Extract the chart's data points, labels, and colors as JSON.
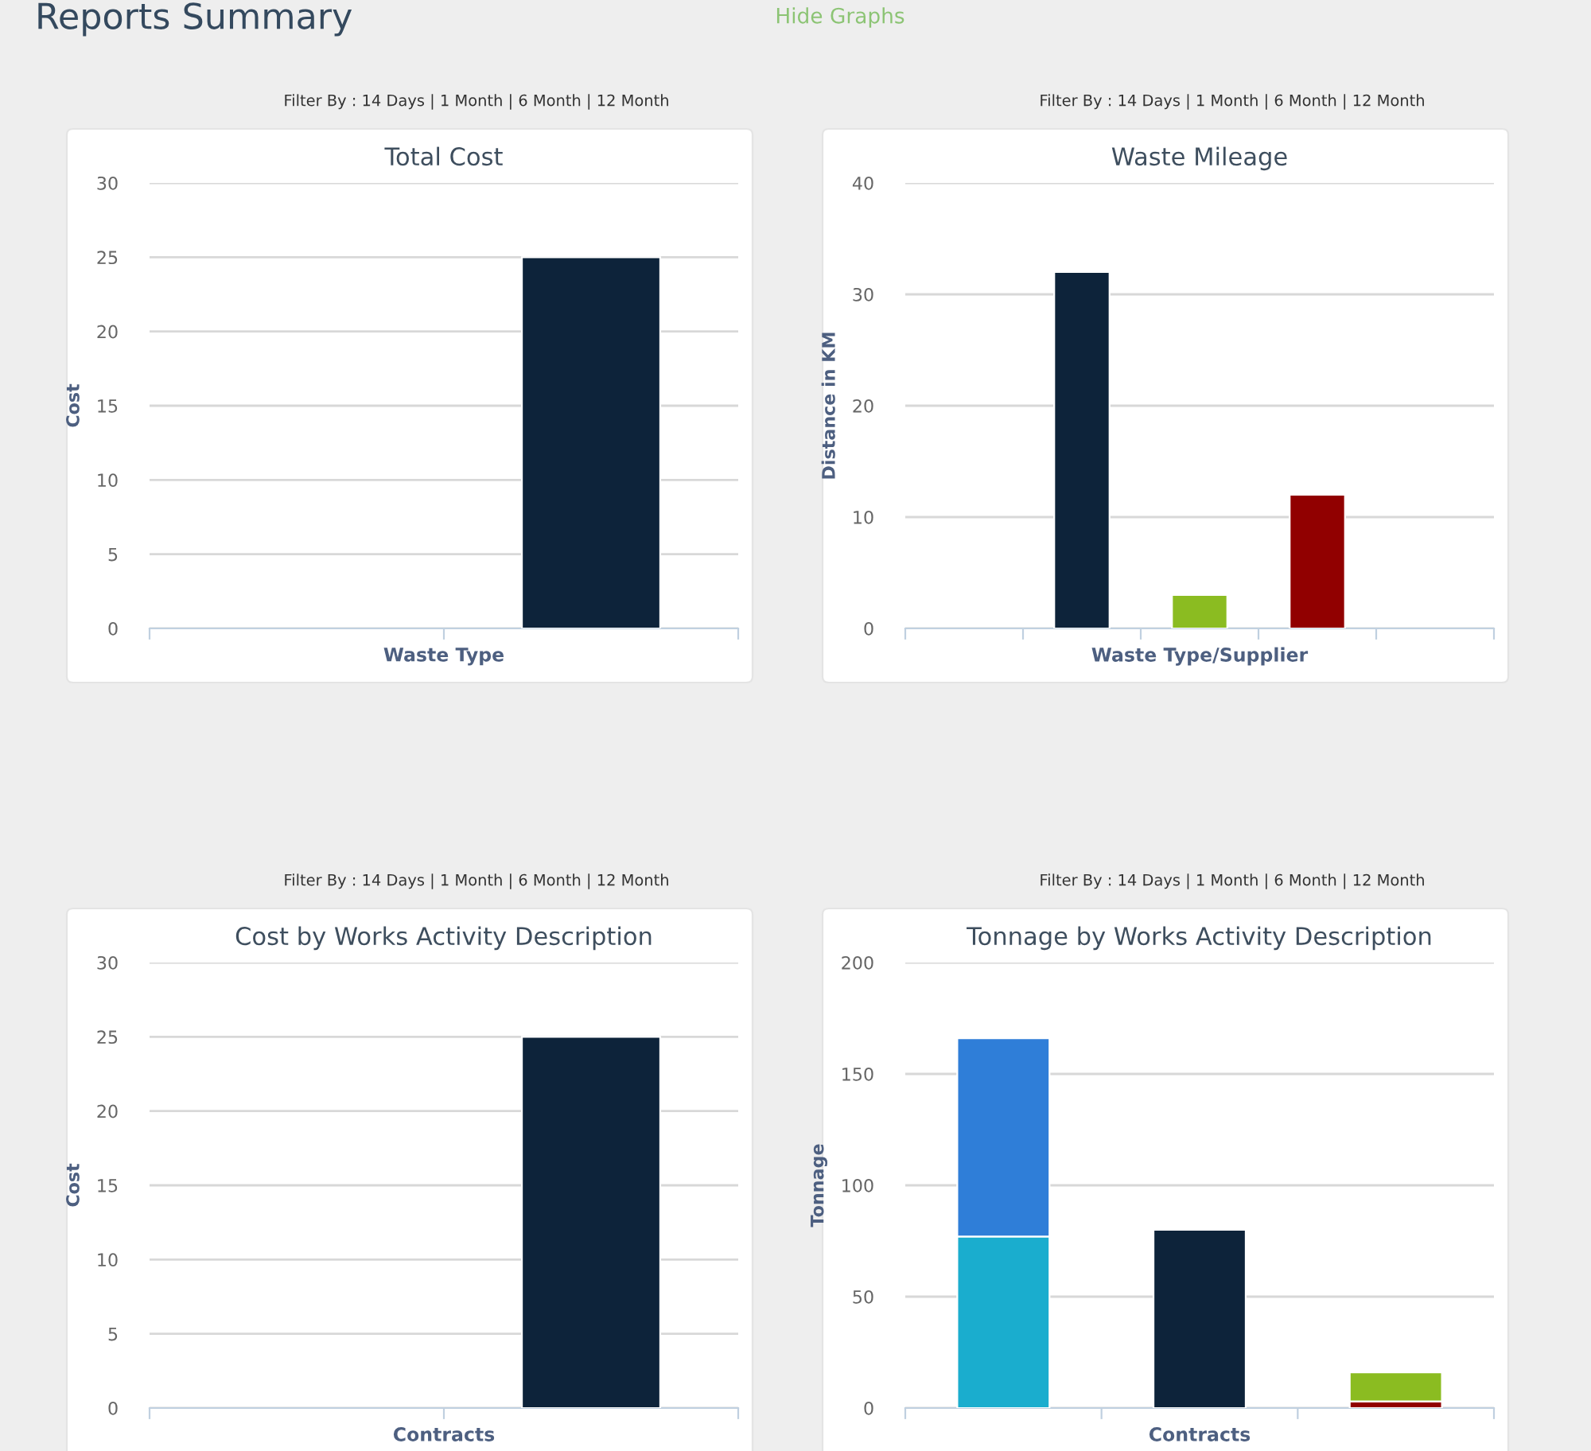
{
  "chart_data": [
    {
      "type": "bar",
      "title": "Total Cost",
      "xlabel": "Waste Type",
      "ylabel": "Cost",
      "annotations": [
        "Reports Summary",
        "Hide Graphs",
        "Filter By : 14 Days | 1 Month | 6 Month | 12 Month"
      ],
      "categories": [
        null,
        null
      ],
      "values": [
        null,
        25
      ],
      "color": "#0d233a",
      "ylim": [
        0,
        30
      ],
      "yticks": [
        0,
        5,
        10,
        15,
        20,
        25,
        30
      ],
      "grid": "y",
      "tick_labels": "y"
    },
    {
      "type": "bar",
      "title": "Waste Mileage",
      "xlabel": "Waste Type/Supplier",
      "ylabel": "Distance in KM",
      "annotations": [
        "Filter By : 14 Days | 1 Month | 6 Month | 12 Month"
      ],
      "categories": [
        null,
        null,
        null,
        null,
        null
      ],
      "values": [
        null,
        32,
        3,
        12,
        null
      ],
      "colors": [
        "#0d233a",
        "#0d233a",
        "#8bbc21",
        "#910000",
        "#0d233a"
      ],
      "ylim": [
        0,
        40
      ],
      "yticks": [
        0,
        10,
        20,
        30,
        40
      ],
      "grid": "y",
      "tick_labels": "y"
    },
    {
      "type": "bar",
      "title": "Cost by Works Activity Description",
      "xlabel": "Contracts",
      "ylabel": "Cost",
      "annotations": [
        "Filter By : 14 Days | 1 Month | 6 Month | 12 Month"
      ],
      "categories": [
        null,
        null
      ],
      "values": [
        null,
        25
      ],
      "color": "#0d233a",
      "ylim": [
        0,
        30
      ],
      "yticks": [
        0,
        5,
        10,
        15,
        20,
        25,
        30
      ],
      "grid": "y",
      "tick_labels": "y"
    },
    {
      "type": "bar",
      "title": "Tonnage by Works Activity Description",
      "xlabel": "Contracts",
      "ylabel": "Tonnage",
      "annotations": [
        "Filter By : 14 Days | 1 Month | 6 Month | 12 Month"
      ],
      "categories": [
        null,
        null,
        null
      ],
      "stacked": true,
      "series": [
        {
          "color": "#1aadce",
          "values": [
            77,
            null,
            null
          ]
        },
        {
          "color": "#2f7ed8",
          "values": [
            89,
            null,
            null
          ]
        },
        {
          "color": "#0d233a",
          "values": [
            null,
            80,
            null
          ]
        },
        {
          "color": "#910000",
          "values": [
            null,
            null,
            3
          ]
        },
        {
          "color": "#8bbc21",
          "values": [
            null,
            null,
            13
          ]
        }
      ],
      "ylim": [
        0,
        200
      ],
      "yticks": [
        0,
        50,
        100,
        150,
        200
      ],
      "grid": "y",
      "tick_labels": "y"
    }
  ]
}
